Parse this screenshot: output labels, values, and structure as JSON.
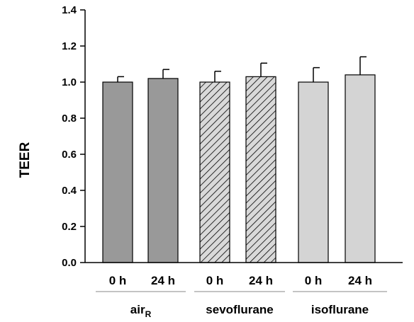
{
  "chart_data": {
    "type": "bar",
    "ylabel": "TEER",
    "ylim": [
      0,
      1.4
    ],
    "yticks": [
      "0.0",
      "0.2",
      "0.4",
      "0.6",
      "0.8",
      "1.0",
      "1.2",
      "1.4"
    ],
    "categories": [
      "0 h",
      "24 h",
      "0 h",
      "24 h",
      "0 h",
      "24 h"
    ],
    "groups": [
      {
        "label": "air",
        "label_subscript": "R",
        "categories": [
          0,
          1
        ],
        "fill": "#999999",
        "pattern": "solid"
      },
      {
        "label": "sevoflurane",
        "categories": [
          2,
          3
        ],
        "fill": "#d9d9d9",
        "pattern": "hatch"
      },
      {
        "label": "isoflurane",
        "categories": [
          4,
          5
        ],
        "fill": "#d4d4d4",
        "pattern": "solid"
      }
    ],
    "values": [
      1.0,
      1.02,
      1.0,
      1.03,
      1.0,
      1.04
    ],
    "errors": [
      0.03,
      0.05,
      0.06,
      0.075,
      0.08,
      0.1
    ],
    "grid": false,
    "legend": "none"
  }
}
